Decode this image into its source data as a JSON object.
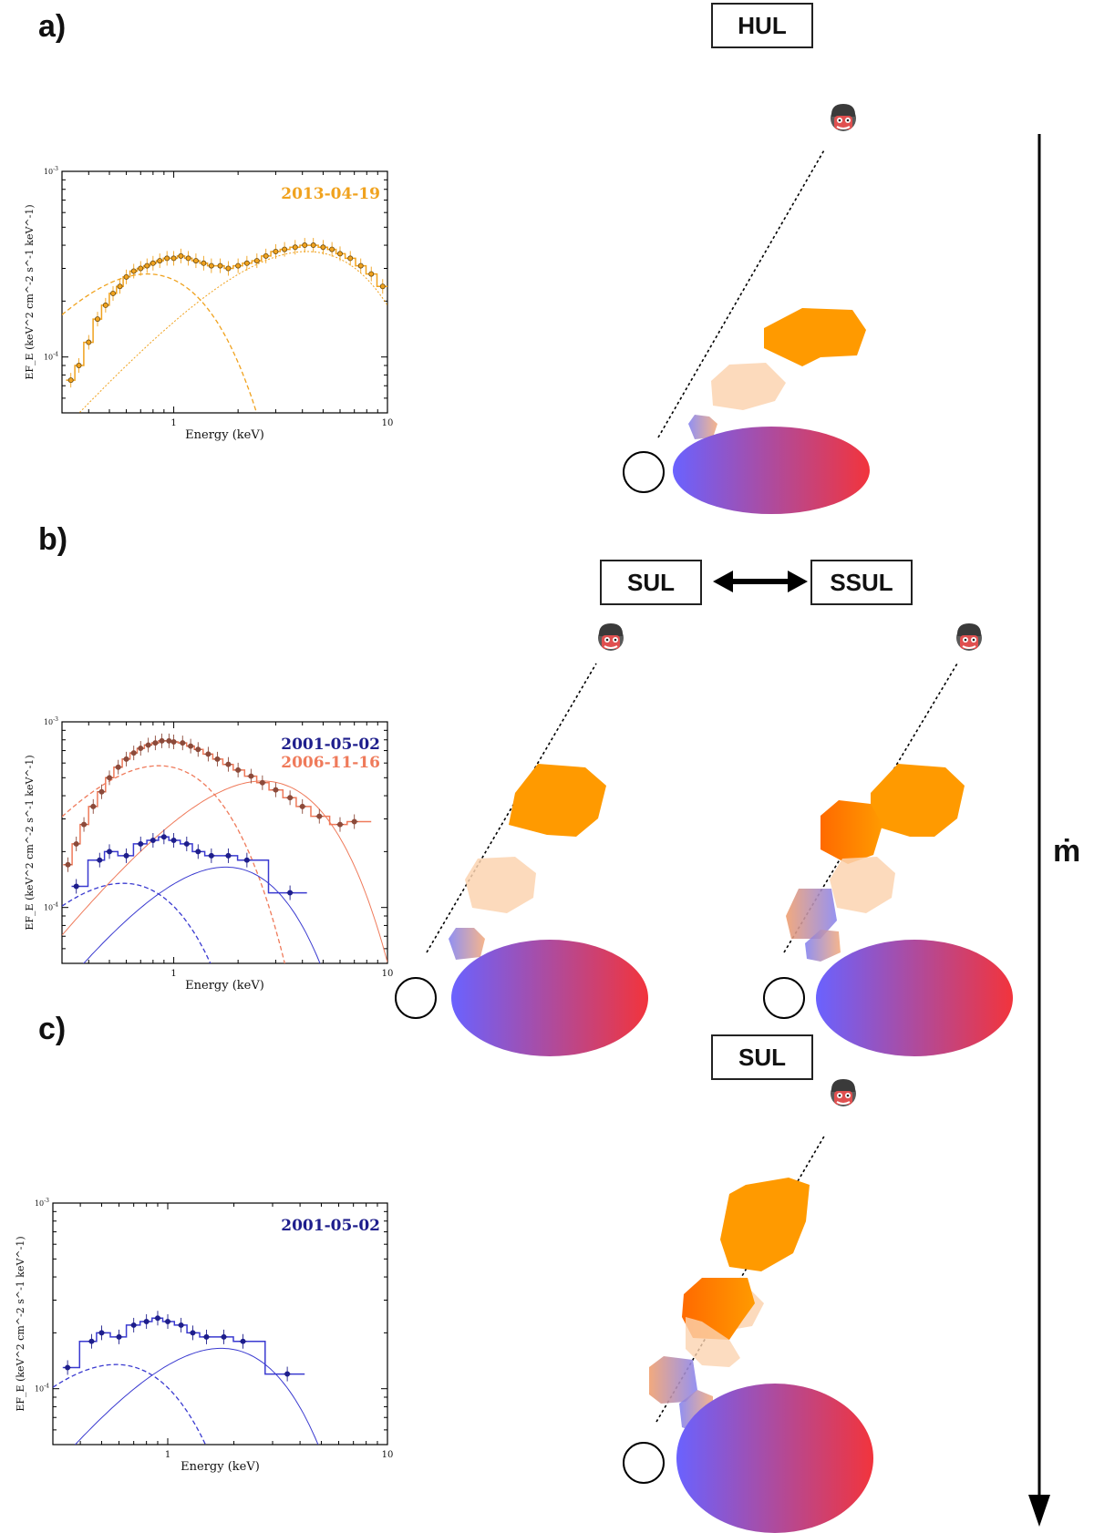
{
  "panels": {
    "a": "a)",
    "b": "b)",
    "c": "c)"
  },
  "states": {
    "hul": "HUL",
    "sul": "SUL",
    "ssul": "SSUL",
    "sul_c": "SUL"
  },
  "axis_symbol": "ṁ",
  "colors": {
    "orange": "#ff9a00",
    "pale_orange": "#fbd3b0",
    "disk_blue": "#6a62ff",
    "disk_red": "#f2343c",
    "spec_orange": "#f0a21e",
    "spec_brown": "#8c4a3a",
    "spec_salmon": "#ef7a5a",
    "spec_navy": "#1e1e8c",
    "spec_blue": "#3a3ad0"
  },
  "chart_data": [
    {
      "type": "line",
      "panel": "a",
      "xlabel": "Energy (keV)",
      "ylabel": "EF_E (keV^2 cm^-2 s^-1 keV^-1)",
      "xscale": "log",
      "yscale": "log",
      "xlim": [
        0.3,
        10
      ],
      "ylim": [
        5e-05,
        0.001
      ],
      "xticks": [
        "1",
        "10"
      ],
      "yticks": [
        "10^-3",
        "10^-4"
      ],
      "legend": [
        "2013-04-19"
      ],
      "series": [
        {
          "name": "2013-04-19",
          "color": "#f0a21e",
          "x": [
            0.33,
            0.36,
            0.4,
            0.44,
            0.48,
            0.52,
            0.56,
            0.6,
            0.65,
            0.7,
            0.75,
            0.8,
            0.86,
            0.93,
            1.0,
            1.08,
            1.17,
            1.27,
            1.38,
            1.5,
            1.65,
            1.8,
            2.0,
            2.2,
            2.45,
            2.7,
            3.0,
            3.3,
            3.7,
            4.1,
            4.5,
            5.0,
            5.5,
            6.0,
            6.7,
            7.5,
            8.4,
            9.5
          ],
          "y": [
            7.5e-05,
            9e-05,
            0.00012,
            0.00016,
            0.00019,
            0.00022,
            0.00024,
            0.00027,
            0.00029,
            0.0003,
            0.00031,
            0.00032,
            0.00033,
            0.00034,
            0.00034,
            0.00035,
            0.00034,
            0.00033,
            0.00032,
            0.00031,
            0.00031,
            0.0003,
            0.00031,
            0.00032,
            0.00033,
            0.00035,
            0.00037,
            0.00038,
            0.00039,
            0.0004,
            0.0004,
            0.00039,
            0.00038,
            0.00036,
            0.00034,
            0.00031,
            0.00028,
            0.00024
          ]
        }
      ]
    },
    {
      "type": "line",
      "panel": "b",
      "xlabel": "Energy (keV)",
      "ylabel": "EF_E (keV^2 cm^-2 s^-1 keV^-1)",
      "xscale": "log",
      "yscale": "log",
      "xlim": [
        0.3,
        10
      ],
      "ylim": [
        5e-05,
        0.001
      ],
      "xticks": [
        "1",
        "10"
      ],
      "yticks": [
        "10^-3",
        "10^-4"
      ],
      "legend": [
        "2001-05-02",
        "2006-11-16"
      ],
      "series": [
        {
          "name": "2006-11-16",
          "color": "#8c4a3a",
          "x": [
            0.32,
            0.35,
            0.38,
            0.42,
            0.46,
            0.5,
            0.55,
            0.6,
            0.65,
            0.7,
            0.76,
            0.82,
            0.88,
            0.95,
            1.0,
            1.1,
            1.2,
            1.3,
            1.45,
            1.6,
            1.8,
            2.0,
            2.3,
            2.6,
            3.0,
            3.5,
            4.0,
            4.8,
            6.0,
            7.0
          ],
          "y": [
            0.00017,
            0.00022,
            0.00028,
            0.00035,
            0.00042,
            0.0005,
            0.00057,
            0.00063,
            0.00068,
            0.00072,
            0.00075,
            0.00077,
            0.00079,
            0.00079,
            0.00078,
            0.00077,
            0.00074,
            0.00071,
            0.00067,
            0.00063,
            0.00059,
            0.00055,
            0.00051,
            0.00047,
            0.00043,
            0.00039,
            0.00035,
            0.00031,
            0.00028,
            0.00029
          ]
        },
        {
          "name": "2001-05-02",
          "color": "#1e1e8c",
          "x": [
            0.35,
            0.45,
            0.5,
            0.6,
            0.7,
            0.8,
            0.9,
            1.0,
            1.15,
            1.3,
            1.5,
            1.8,
            2.2,
            3.5
          ],
          "y": [
            0.00013,
            0.00018,
            0.0002,
            0.00019,
            0.00022,
            0.00023,
            0.00024,
            0.00023,
            0.00022,
            0.0002,
            0.00019,
            0.00019,
            0.00018,
            0.00012
          ]
        }
      ]
    },
    {
      "type": "line",
      "panel": "c",
      "xlabel": "Energy (keV)",
      "ylabel": "EF_E (keV^2 cm^-2 s^-1 keV^-1)",
      "xscale": "log",
      "yscale": "log",
      "xlim": [
        0.3,
        10
      ],
      "ylim": [
        5e-05,
        0.001
      ],
      "xticks": [
        "1",
        "10"
      ],
      "yticks": [
        "10^-3",
        "10^-4"
      ],
      "legend": [
        "2001-05-02"
      ],
      "series": [
        {
          "name": "2001-05-02",
          "color": "#1e1e8c",
          "x": [
            0.35,
            0.45,
            0.5,
            0.6,
            0.7,
            0.8,
            0.9,
            1.0,
            1.15,
            1.3,
            1.5,
            1.8,
            2.2,
            3.5
          ],
          "y": [
            0.00013,
            0.00018,
            0.0002,
            0.00019,
            0.00022,
            0.00023,
            0.00024,
            0.00023,
            0.00022,
            0.0002,
            0.00019,
            0.00019,
            0.00018,
            0.00012
          ]
        }
      ]
    }
  ]
}
